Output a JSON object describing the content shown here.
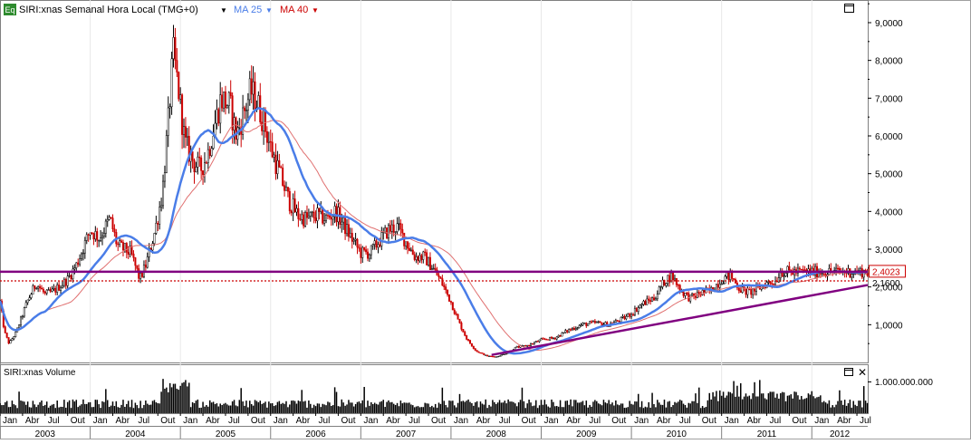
{
  "header": {
    "badge": "Eq",
    "symbol_title": "SIRI:xnas Semanal Hora Local (TMG+0)",
    "ma25_label": "MA 25",
    "ma40_label": "MA 40"
  },
  "volume_panel": {
    "title": "SIRI:xnas Volume",
    "axis_label": "1.000.000.000"
  },
  "price_label": "2,4023",
  "ma_value_label": "2,1600",
  "colors": {
    "up": "#000000",
    "down": "#cc0000",
    "ma25": "#4a7de8",
    "ma40": "#e07070",
    "resistance": "#800080",
    "trendline": "#800080",
    "dotted": "#cc0000",
    "price_box_border": "#cc0000",
    "price_box_text": "#cc0000"
  },
  "chart_data": {
    "type": "candlestick",
    "ylim": [
      0,
      9.6
    ],
    "y_ticks": [
      "1,0000",
      "2,0000",
      "3,0000",
      "4,0000",
      "5,0000",
      "6,0000",
      "7,0000",
      "8,0000",
      "9,0000"
    ],
    "y_tick_values": [
      1,
      2,
      3,
      4,
      5,
      6,
      7,
      8,
      9
    ],
    "x_month_labels": [
      "Jan",
      "Abr",
      "Jul",
      "Out",
      "Jan",
      "Abr",
      "Jul",
      "Out",
      "Jan",
      "Abr",
      "Jul",
      "Out",
      "Jan",
      "Abr",
      "Jul",
      "Out",
      "Jan",
      "Abr",
      "Jul",
      "Out",
      "Jan",
      "Abr",
      "Jul",
      "Out",
      "Jan",
      "Abr",
      "Jul",
      "Out",
      "Jan",
      "Abr",
      "Jul",
      "Out",
      "Jan",
      "Abr",
      "Jul",
      "Out",
      "Jan",
      "Abr",
      "Jul"
    ],
    "x_year_labels": [
      "2003",
      "2004",
      "2005",
      "2006",
      "2007",
      "2008",
      "2009",
      "2010",
      "2011",
      "2012"
    ],
    "x_start": 2003.0,
    "x_end": 2012.62,
    "price_anchors": [
      [
        2003.0,
        1.6
      ],
      [
        2003.05,
        0.8
      ],
      [
        2003.1,
        0.5
      ],
      [
        2003.18,
        0.8
      ],
      [
        2003.3,
        1.6
      ],
      [
        2003.4,
        2.1
      ],
      [
        2003.5,
        1.8
      ],
      [
        2003.6,
        1.9
      ],
      [
        2003.75,
        2.2
      ],
      [
        2003.85,
        2.6
      ],
      [
        2003.95,
        3.2
      ],
      [
        2004.0,
        3.5
      ],
      [
        2004.1,
        3.3
      ],
      [
        2004.22,
        3.8
      ],
      [
        2004.3,
        3.1
      ],
      [
        2004.45,
        2.9
      ],
      [
        2004.55,
        2.2
      ],
      [
        2004.62,
        2.6
      ],
      [
        2004.72,
        3.5
      ],
      [
        2004.8,
        4.5
      ],
      [
        2004.87,
        6.5
      ],
      [
        2004.92,
        8.2
      ],
      [
        2004.98,
        7.2
      ],
      [
        2005.05,
        5.8
      ],
      [
        2005.15,
        5.3
      ],
      [
        2005.22,
        5.1
      ],
      [
        2005.3,
        5.5
      ],
      [
        2005.38,
        6.3
      ],
      [
        2005.45,
        7.0
      ],
      [
        2005.55,
        6.8
      ],
      [
        2005.62,
        6.0
      ],
      [
        2005.7,
        6.6
      ],
      [
        2005.78,
        7.2
      ],
      [
        2005.85,
        6.9
      ],
      [
        2005.92,
        6.4
      ],
      [
        2006.0,
        5.7
      ],
      [
        2006.1,
        5.0
      ],
      [
        2006.2,
        4.3
      ],
      [
        2006.3,
        3.9
      ],
      [
        2006.4,
        3.8
      ],
      [
        2006.52,
        3.9
      ],
      [
        2006.62,
        3.8
      ],
      [
        2006.72,
        4.0
      ],
      [
        2006.82,
        3.6
      ],
      [
        2006.92,
        3.2
      ],
      [
        2007.0,
        2.9
      ],
      [
        2007.1,
        2.9
      ],
      [
        2007.2,
        3.2
      ],
      [
        2007.3,
        3.5
      ],
      [
        2007.4,
        3.6
      ],
      [
        2007.5,
        3.2
      ],
      [
        2007.6,
        2.8
      ],
      [
        2007.7,
        2.8
      ],
      [
        2007.8,
        2.5
      ],
      [
        2007.9,
        2.1
      ],
      [
        2008.0,
        1.6
      ],
      [
        2008.08,
        1.1
      ],
      [
        2008.18,
        0.6
      ],
      [
        2008.28,
        0.3
      ],
      [
        2008.4,
        0.17
      ],
      [
        2008.5,
        0.15
      ],
      [
        2008.62,
        0.25
      ],
      [
        2008.72,
        0.4
      ],
      [
        2008.85,
        0.45
      ],
      [
        2009.0,
        0.6
      ],
      [
        2009.15,
        0.65
      ],
      [
        2009.3,
        0.85
      ],
      [
        2009.45,
        1.0
      ],
      [
        2009.6,
        1.05
      ],
      [
        2009.75,
        1.0
      ],
      [
        2009.9,
        1.15
      ],
      [
        2010.0,
        1.3
      ],
      [
        2010.12,
        1.55
      ],
      [
        2010.25,
        1.7
      ],
      [
        2010.38,
        2.2
      ],
      [
        2010.45,
        2.3
      ],
      [
        2010.55,
        1.9
      ],
      [
        2010.65,
        1.7
      ],
      [
        2010.78,
        1.85
      ],
      [
        2010.88,
        1.9
      ],
      [
        2011.0,
        2.2
      ],
      [
        2011.1,
        2.3
      ],
      [
        2011.2,
        1.95
      ],
      [
        2011.3,
        1.85
      ],
      [
        2011.4,
        1.95
      ],
      [
        2011.5,
        2.1
      ],
      [
        2011.6,
        2.16
      ],
      [
        2011.65,
        2.4
      ]
    ],
    "resistance_level": 2.4023,
    "dotted_level": 2.16,
    "trendline": {
      "start": [
        2008.45,
        0.2
      ],
      "end": [
        2012.62,
        2.05
      ]
    }
  }
}
